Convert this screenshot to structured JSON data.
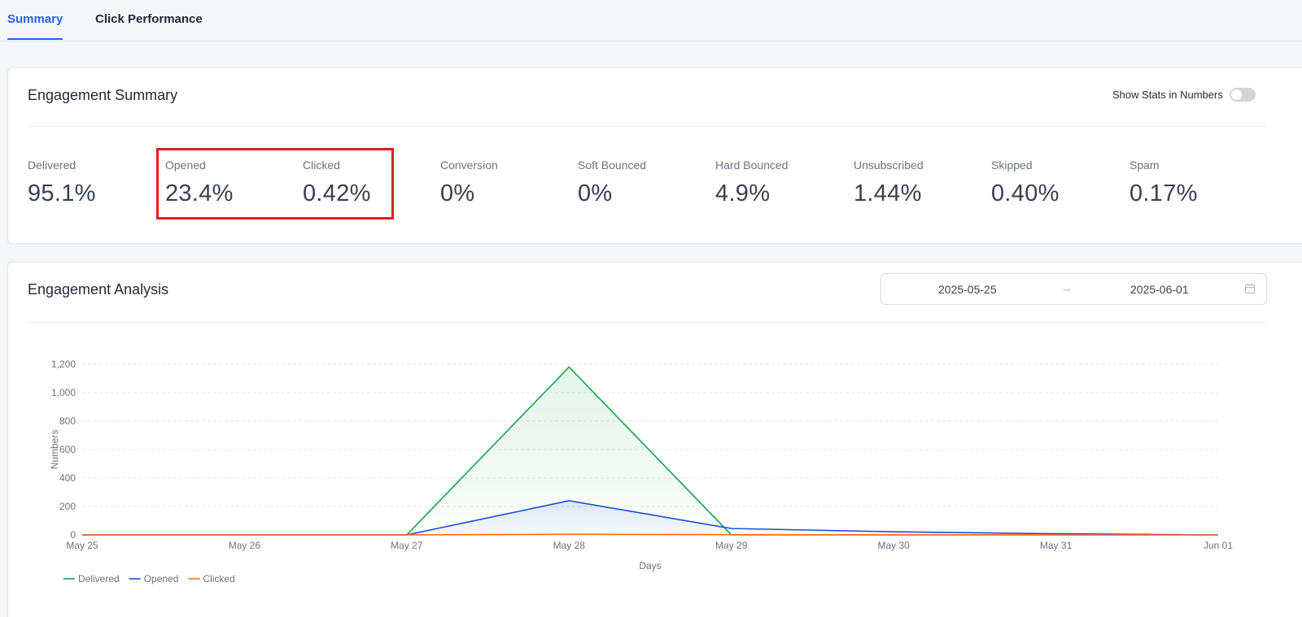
{
  "tabs": [
    {
      "label": "Summary",
      "active": true
    },
    {
      "label": "Click Performance",
      "active": false
    }
  ],
  "summary": {
    "title": "Engagement Summary",
    "toggle_label": "Show Stats in Numbers",
    "toggle_on": false,
    "stats": [
      {
        "label": "Delivered",
        "value": "95.1%"
      },
      {
        "label": "Opened",
        "value": "23.4%"
      },
      {
        "label": "Clicked",
        "value": "0.42%"
      },
      {
        "label": "Conversion",
        "value": "0%"
      },
      {
        "label": "Soft Bounced",
        "value": "0%"
      },
      {
        "label": "Hard Bounced",
        "value": "4.9%"
      },
      {
        "label": "Unsubscribed",
        "value": "1.44%"
      },
      {
        "label": "Skipped",
        "value": "0.40%"
      },
      {
        "label": "Spam",
        "value": "0.17%"
      }
    ],
    "highlight_color": "#e11d1d"
  },
  "analysis": {
    "title": "Engagement Analysis",
    "date_start": "2025-05-25",
    "date_end": "2025-06-01",
    "arrow": "→"
  },
  "chart_data": {
    "type": "line",
    "categories": [
      "May 25",
      "May 26",
      "May 27",
      "May 28",
      "May 29",
      "May 30",
      "May 31",
      "Jun 01"
    ],
    "series": [
      {
        "name": "Delivered",
        "color": "#16a34a",
        "values": [
          0,
          0,
          0,
          1180,
          0,
          0,
          0,
          0
        ]
      },
      {
        "name": "Opened",
        "color": "#1d4ed8",
        "values": [
          0,
          0,
          0,
          240,
          45,
          22,
          8,
          0
        ]
      },
      {
        "name": "Clicked",
        "color": "#f97316",
        "values": [
          0,
          0,
          0,
          5,
          2,
          1,
          0,
          0
        ]
      }
    ],
    "xlabel": "Days",
    "ylabel": "Numbers",
    "ylim": [
      0,
      1200
    ],
    "yticks": [
      0,
      200,
      400,
      600,
      800,
      1000,
      1200
    ],
    "ytick_labels": [
      "0",
      "200",
      "400",
      "600",
      "800",
      "1,000",
      "1,200"
    ],
    "grid": true,
    "legend_position": "bottom-left"
  }
}
